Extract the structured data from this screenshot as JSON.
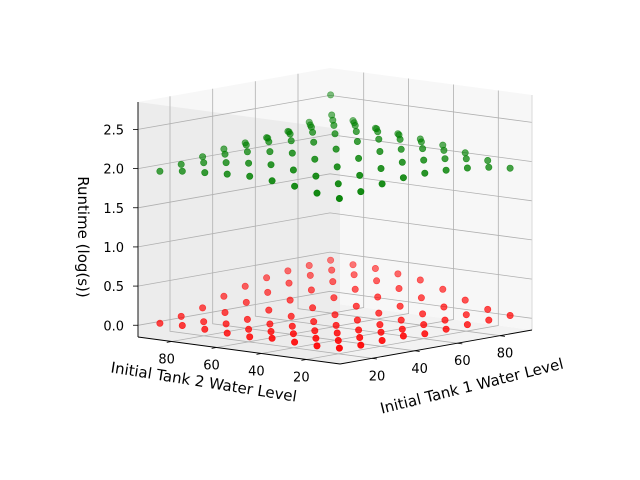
{
  "chart_data": {
    "type": "scatter",
    "projection": "3d",
    "xlabel": "Initial Tank 1 Water Level",
    "ylabel": "Initial Tank 2 Water Level",
    "zlabel": "Runtime (log(s))",
    "xlim": [
      5,
      95
    ],
    "ylim": [
      5,
      95
    ],
    "zlim": [
      -0.15,
      2.85
    ],
    "xticks": [
      "20",
      "40",
      "60",
      "80"
    ],
    "yticks": [
      "20",
      "40",
      "60",
      "80"
    ],
    "zticks": [
      "0.0",
      "0.5",
      "1.0",
      "1.5",
      "2.0",
      "2.5"
    ],
    "grid": true,
    "legend": "none",
    "series": [
      {
        "color": "#ff0000",
        "grid_start": 10,
        "grid_step": 10,
        "grid_count": 9,
        "z_note": "runtime values per (tank1, tank2) grid point, rows = tank1 10..90, cols = tank2 10..90",
        "z": [
          [
            0.01,
            0.0,
            0.01,
            0.02,
            0.0,
            0.01,
            0.02,
            0.03,
            0.02
          ],
          [
            0.0,
            0.02,
            0.01,
            0.03,
            0.02,
            0.01,
            0.04,
            0.03,
            0.06
          ],
          [
            0.01,
            0.01,
            0.03,
            0.02,
            0.04,
            0.03,
            0.05,
            0.1,
            0.12
          ],
          [
            0.02,
            0.03,
            0.02,
            0.04,
            0.05,
            0.08,
            0.12,
            0.18,
            0.22
          ],
          [
            0.0,
            0.02,
            0.04,
            0.06,
            0.09,
            0.14,
            0.2,
            0.26,
            0.3
          ],
          [
            0.01,
            0.03,
            0.05,
            0.1,
            0.15,
            0.22,
            0.28,
            0.33,
            0.36
          ],
          [
            0.02,
            0.04,
            0.08,
            0.14,
            0.22,
            0.28,
            0.34,
            0.38,
            0.4
          ],
          [
            0.03,
            0.06,
            0.12,
            0.2,
            0.28,
            0.34,
            0.38,
            0.4,
            0.42
          ],
          [
            0.04,
            0.08,
            0.16,
            0.26,
            0.34,
            0.38,
            0.41,
            0.42,
            0.44
          ]
        ]
      },
      {
        "color": "#008000",
        "grid_start": 10,
        "grid_step": 10,
        "grid_count": 9,
        "z_note": "runtime values per (tank1, tank2) grid point, rows = tank1 10..90, cols = tank2 10..90",
        "z": [
          [
            1.92,
            1.95,
            2.0,
            2.03,
            2.05,
            2.04,
            2.02,
            2.0,
            1.96
          ],
          [
            1.96,
            2.02,
            2.08,
            2.12,
            2.15,
            2.13,
            2.1,
            2.06,
            2.0
          ],
          [
            2.01,
            2.08,
            2.15,
            2.21,
            2.25,
            2.23,
            2.19,
            2.12,
            2.05
          ],
          [
            2.04,
            2.12,
            2.21,
            2.29,
            2.34,
            2.32,
            2.27,
            2.19,
            2.1
          ],
          [
            2.05,
            2.15,
            2.25,
            2.34,
            2.4,
            2.38,
            2.32,
            2.23,
            2.13
          ],
          [
            2.04,
            2.13,
            2.23,
            2.32,
            2.38,
            2.42,
            2.36,
            2.26,
            2.15
          ],
          [
            2.02,
            2.1,
            2.19,
            2.27,
            2.33,
            2.37,
            2.4,
            2.3,
            2.18
          ],
          [
            1.98,
            2.05,
            2.12,
            2.19,
            2.24,
            2.28,
            2.32,
            2.38,
            2.25
          ],
          [
            1.92,
            1.98,
            2.04,
            2.1,
            2.14,
            2.17,
            2.2,
            2.26,
            2.55
          ]
        ]
      }
    ]
  }
}
